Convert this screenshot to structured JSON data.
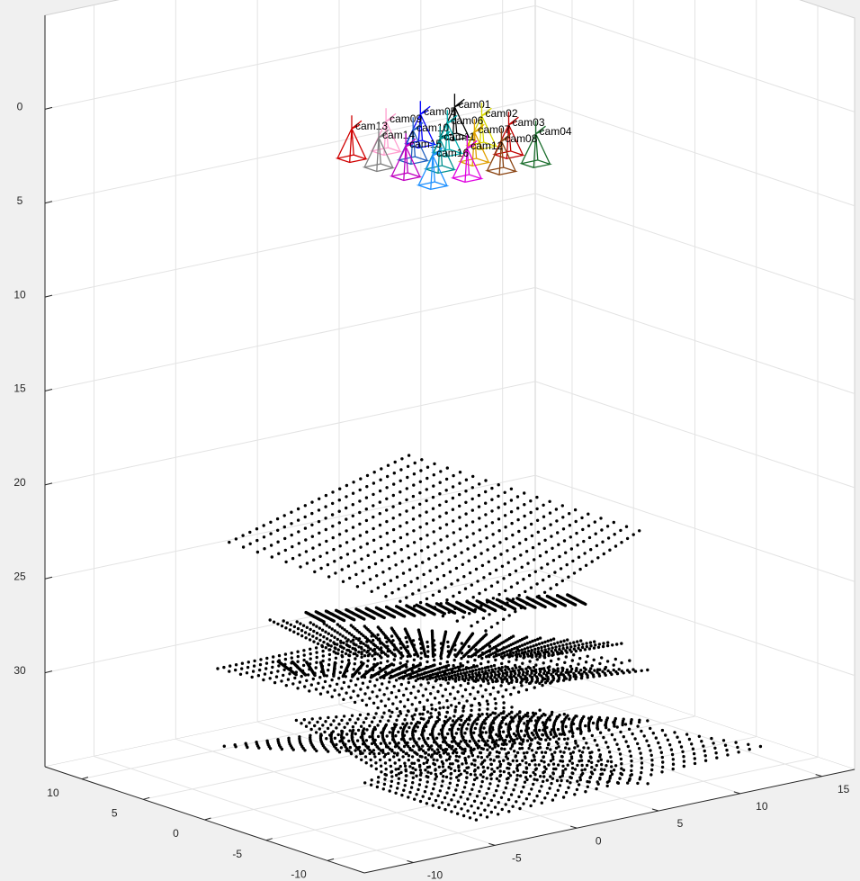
{
  "chart_data": {
    "type": "scatter3d",
    "xlim": [
      -13,
      17
    ],
    "xticks": [
      -10,
      -5,
      0,
      5,
      10,
      15
    ],
    "ylim": [
      -13,
      13
    ],
    "yticks": [
      -10,
      -5,
      0,
      5,
      10
    ],
    "zlim": [
      -5,
      35
    ],
    "zticks": [
      0,
      5,
      10,
      15,
      20,
      25,
      30
    ],
    "zdir": "reverse",
    "grid": true,
    "cameras": [
      {
        "name": "cam01",
        "color": "#000000",
        "position": [
          2.6,
          0.4,
          0
        ]
      },
      {
        "name": "cam02",
        "color": "#d8d800",
        "position": [
          2.6,
          -1.8,
          0
        ]
      },
      {
        "name": "cam03",
        "color": "#c00000",
        "position": [
          2.6,
          -4.0,
          0
        ]
      },
      {
        "name": "cam04",
        "color": "#1b6e2d",
        "position": [
          2.6,
          -6.2,
          0
        ]
      },
      {
        "name": "cam05",
        "color": "#0000ff",
        "position": [
          0.5,
          0.4,
          0
        ]
      },
      {
        "name": "cam06",
        "color": "#00b0b0",
        "position": [
          0.5,
          -1.8,
          0
        ]
      },
      {
        "name": "cam07",
        "color": "#e0a000",
        "position": [
          0.5,
          -4.0,
          0
        ]
      },
      {
        "name": "cam08",
        "color": "#8b4513",
        "position": [
          0.5,
          -6.2,
          0
        ]
      },
      {
        "name": "cam09",
        "color": "#ff9ecf",
        "position": [
          -1.6,
          0.4,
          0
        ]
      },
      {
        "name": "cam10",
        "color": "#2060c0",
        "position": [
          -1.6,
          -1.8,
          0
        ]
      },
      {
        "name": "cam11",
        "color": "#009090",
        "position": [
          -1.6,
          -4.0,
          0
        ]
      },
      {
        "name": "cam12",
        "color": "#e000e0",
        "position": [
          -1.6,
          -6.2,
          0
        ]
      },
      {
        "name": "cam13",
        "color": "#d00000",
        "position": [
          -3.7,
          0.4,
          0
        ]
      },
      {
        "name": "cam14",
        "color": "#808080",
        "position": [
          -3.7,
          -1.8,
          0
        ]
      },
      {
        "name": "cam15",
        "color": "#c000c0",
        "position": [
          -3.7,
          -4.0,
          0
        ]
      },
      {
        "name": "cam16",
        "color": "#1e90ff",
        "position": [
          -3.7,
          -6.2,
          0
        ]
      }
    ],
    "boards": [
      [
        [
          -11.5,
          0,
          20.5
        ],
        [
          -0.5,
          0,
          17.9
        ],
        [
          13.6,
          0,
          24.5
        ],
        [
          4.2,
          0,
          28.1
        ]
      ],
      [
        [
          -6.8,
          0,
          25.1
        ],
        [
          9.2,
          0,
          27.1
        ],
        [
          10.3,
          0,
          27.8
        ],
        [
          -5.7,
          0,
          25.8
        ]
      ],
      [
        [
          -9.0,
          0,
          25.1
        ],
        [
          12.5,
          0,
          30.3
        ],
        [
          7.5,
          0,
          30.1
        ],
        [
          -4.6,
          0,
          27.8
        ]
      ],
      [
        [
          -12.2,
          0,
          27.1
        ],
        [
          -2.4,
          0,
          27.1
        ],
        [
          13.0,
          0,
          31.3
        ],
        [
          0.4,
          0,
          32.1
        ]
      ],
      [
        [
          -8.5,
          0,
          27.4
        ],
        [
          14.1,
          0,
          32.0
        ],
        [
          7.5,
          0,
          31.5
        ],
        [
          -7.4,
          0,
          28.3
        ]
      ],
      [
        [
          -11.8,
          0,
          31.3
        ],
        [
          5.3,
          0,
          32.6
        ],
        [
          14.1,
          0,
          34.7
        ],
        [
          0.9,
          0,
          34.2
        ]
      ],
      [
        [
          -11.9,
          -6,
          28.6
        ],
        [
          0.8,
          -6,
          30.0
        ],
        [
          6.6,
          -10,
          34.5
        ],
        [
          -9.4,
          -10,
          31.1
        ]
      ],
      [
        [
          -7.7,
          -6,
          32.7
        ],
        [
          3.0,
          -6,
          30.8
        ],
        [
          15.0,
          -8,
          34.5
        ],
        [
          -3.9,
          -10,
          34.5
        ]
      ]
    ]
  }
}
